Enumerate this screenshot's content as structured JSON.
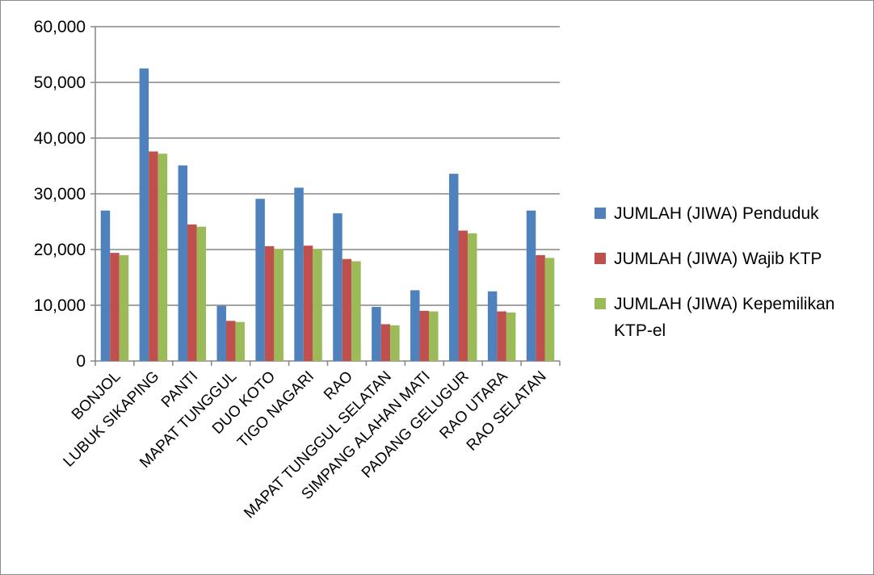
{
  "chart_data": {
    "type": "bar",
    "categories": [
      "BONJOL",
      "LUBUK SIKAPING",
      "PANTI",
      "MAPAT TUNGGUL",
      "DUO KOTO",
      "TIGO NAGARI",
      "RAO",
      "MAPAT TUNGGUL SELATAN",
      "SIMPANG ALAHAN MATI",
      "PADANG GELUGUR",
      "RAO UTARA",
      "RAO SELATAN"
    ],
    "series": [
      {
        "name": "JUMLAH (JIWA) Penduduk",
        "color": "#4f81bd",
        "values": [
          27000,
          52500,
          35100,
          9900,
          29100,
          31100,
          26500,
          9700,
          12700,
          33600,
          12500,
          27000
        ]
      },
      {
        "name": "JUMLAH (JIWA) Wajib KTP",
        "color": "#c0504d",
        "values": [
          19400,
          37600,
          24500,
          7200,
          20600,
          20700,
          18300,
          6600,
          9000,
          23400,
          8900,
          19000
        ]
      },
      {
        "name": "JUMLAH (JIWA) Kepemilikan KTP-el",
        "color": "#9bbb59",
        "values": [
          19000,
          37200,
          24100,
          7000,
          20100,
          20100,
          17900,
          6400,
          8900,
          22900,
          8700,
          18500
        ]
      }
    ],
    "ylim": [
      0,
      60000
    ],
    "yticks": [
      "0",
      "10,000",
      "20,000",
      "30,000",
      "40,000",
      "50,000",
      "60,000"
    ],
    "grid": true,
    "legend": "right",
    "title": "",
    "xlabel": "",
    "ylabel": ""
  }
}
